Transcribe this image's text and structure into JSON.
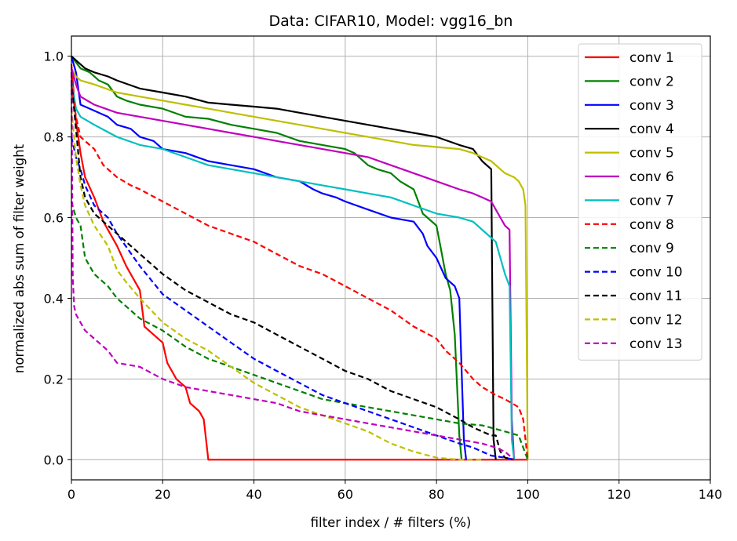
{
  "chart_data": {
    "type": "line",
    "title": "Data: CIFAR10, Model: vgg16_bn",
    "xlabel": "filter index / # filters (%)",
    "ylabel": "normalized abs sum of filter weight",
    "xlim": [
      0,
      140
    ],
    "ylim": [
      -0.05,
      1.05
    ],
    "xticks": [
      0,
      20,
      40,
      60,
      80,
      100,
      120,
      140
    ],
    "yticks": [
      0.0,
      0.2,
      0.4,
      0.6,
      0.8,
      1.0
    ],
    "xtick_labels": [
      "0",
      "20",
      "40",
      "60",
      "80",
      "100",
      "120",
      "140"
    ],
    "ytick_labels": [
      "0.0",
      "0.2",
      "0.4",
      "0.6",
      "0.8",
      "1.0"
    ],
    "grid": true,
    "legend_position": "top-right",
    "series": [
      {
        "name": "conv 1",
        "color": "#ff0000",
        "dash": "solid",
        "x": [
          0,
          1,
          2,
          3,
          5,
          7,
          10,
          12,
          15,
          16,
          18,
          20,
          21,
          23,
          25,
          26,
          28,
          29,
          30,
          35,
          50,
          70,
          90,
          100
        ],
        "y": [
          0.98,
          0.84,
          0.76,
          0.7,
          0.65,
          0.59,
          0.53,
          0.48,
          0.42,
          0.33,
          0.31,
          0.29,
          0.24,
          0.2,
          0.18,
          0.14,
          0.12,
          0.1,
          0.0,
          0.0,
          0.0,
          0.0,
          0.0,
          0.0
        ]
      },
      {
        "name": "conv 2",
        "color": "#008000",
        "dash": "solid",
        "x": [
          0,
          2,
          4,
          6,
          8,
          10,
          12,
          15,
          20,
          25,
          30,
          35,
          40,
          45,
          50,
          55,
          60,
          62,
          65,
          67,
          70,
          72,
          75,
          77,
          78,
          80,
          81,
          82,
          83,
          84,
          85,
          85.5
        ],
        "y": [
          1.0,
          0.97,
          0.96,
          0.94,
          0.93,
          0.9,
          0.89,
          0.88,
          0.87,
          0.85,
          0.845,
          0.83,
          0.82,
          0.81,
          0.79,
          0.78,
          0.77,
          0.76,
          0.73,
          0.72,
          0.71,
          0.69,
          0.67,
          0.61,
          0.6,
          0.58,
          0.52,
          0.46,
          0.42,
          0.31,
          0.06,
          0.0
        ]
      },
      {
        "name": "conv 3",
        "color": "#0000ff",
        "dash": "solid",
        "x": [
          0,
          1,
          2,
          4,
          6,
          8,
          10,
          13,
          15,
          18,
          20,
          25,
          30,
          35,
          40,
          45,
          50,
          53,
          55,
          58,
          60,
          65,
          70,
          75,
          77,
          78,
          80,
          82,
          84,
          85,
          86,
          86.5
        ],
        "y": [
          1.0,
          0.96,
          0.88,
          0.87,
          0.86,
          0.85,
          0.83,
          0.82,
          0.8,
          0.79,
          0.77,
          0.76,
          0.74,
          0.73,
          0.72,
          0.7,
          0.69,
          0.67,
          0.66,
          0.65,
          0.64,
          0.62,
          0.6,
          0.59,
          0.56,
          0.53,
          0.5,
          0.45,
          0.43,
          0.4,
          0.05,
          0.0
        ]
      },
      {
        "name": "conv 4",
        "color": "#000000",
        "dash": "solid",
        "x": [
          0,
          1,
          3,
          5,
          8,
          10,
          15,
          20,
          25,
          30,
          35,
          40,
          45,
          50,
          55,
          60,
          65,
          70,
          75,
          80,
          85,
          88,
          90,
          91,
          92,
          92.5,
          93
        ],
        "y": [
          1.0,
          0.99,
          0.97,
          0.96,
          0.95,
          0.94,
          0.92,
          0.91,
          0.9,
          0.885,
          0.88,
          0.875,
          0.87,
          0.86,
          0.85,
          0.84,
          0.83,
          0.82,
          0.81,
          0.8,
          0.78,
          0.77,
          0.74,
          0.73,
          0.72,
          0.05,
          0.0
        ]
      },
      {
        "name": "conv 5",
        "color": "#bfbf00",
        "dash": "solid",
        "x": [
          0,
          1,
          2,
          5,
          10,
          15,
          20,
          25,
          30,
          35,
          40,
          45,
          50,
          55,
          60,
          65,
          70,
          75,
          80,
          85,
          88,
          90,
          92,
          94,
          95,
          97,
          98,
          99,
          99.5,
          100
        ],
        "y": [
          0.97,
          0.95,
          0.94,
          0.93,
          0.91,
          0.9,
          0.89,
          0.88,
          0.87,
          0.86,
          0.85,
          0.84,
          0.83,
          0.82,
          0.81,
          0.8,
          0.79,
          0.78,
          0.775,
          0.77,
          0.76,
          0.75,
          0.74,
          0.72,
          0.71,
          0.7,
          0.69,
          0.67,
          0.63,
          0.0
        ]
      },
      {
        "name": "conv 6",
        "color": "#bf00bf",
        "dash": "solid",
        "x": [
          0,
          1,
          2,
          5,
          10,
          15,
          20,
          25,
          30,
          35,
          40,
          45,
          50,
          55,
          60,
          65,
          70,
          75,
          80,
          85,
          88,
          90,
          92,
          94,
          95,
          96,
          96.5,
          97
        ],
        "y": [
          0.97,
          0.93,
          0.9,
          0.88,
          0.86,
          0.85,
          0.84,
          0.83,
          0.82,
          0.81,
          0.8,
          0.79,
          0.78,
          0.77,
          0.76,
          0.75,
          0.73,
          0.71,
          0.69,
          0.67,
          0.66,
          0.65,
          0.64,
          0.6,
          0.58,
          0.57,
          0.1,
          0.0
        ]
      },
      {
        "name": "conv 7",
        "color": "#00bfbf",
        "dash": "solid",
        "x": [
          0,
          1,
          2,
          5,
          10,
          15,
          20,
          25,
          30,
          35,
          40,
          45,
          50,
          55,
          60,
          65,
          70,
          75,
          80,
          85,
          88,
          90,
          92,
          93,
          94,
          95,
          96,
          96.5,
          97
        ],
        "y": [
          0.94,
          0.87,
          0.85,
          0.83,
          0.8,
          0.78,
          0.77,
          0.75,
          0.73,
          0.72,
          0.71,
          0.7,
          0.69,
          0.68,
          0.67,
          0.66,
          0.65,
          0.63,
          0.61,
          0.6,
          0.59,
          0.57,
          0.55,
          0.54,
          0.5,
          0.46,
          0.43,
          0.05,
          0.0
        ]
      },
      {
        "name": "conv 8",
        "color": "#ff0000",
        "dash": "dashed",
        "x": [
          0,
          1,
          2,
          3,
          5,
          7,
          10,
          13,
          15,
          20,
          25,
          30,
          35,
          40,
          45,
          50,
          55,
          60,
          65,
          70,
          75,
          80,
          82,
          85,
          88,
          90,
          93,
          95,
          98,
          99,
          100
        ],
        "y": [
          0.93,
          0.85,
          0.8,
          0.79,
          0.77,
          0.73,
          0.7,
          0.68,
          0.67,
          0.64,
          0.61,
          0.58,
          0.56,
          0.54,
          0.51,
          0.48,
          0.46,
          0.43,
          0.4,
          0.37,
          0.33,
          0.3,
          0.27,
          0.24,
          0.2,
          0.18,
          0.16,
          0.15,
          0.13,
          0.1,
          0.0
        ]
      },
      {
        "name": "conv 9",
        "color": "#008000",
        "dash": "dashed",
        "x": [
          0,
          0.5,
          1,
          2,
          3,
          5,
          8,
          10,
          15,
          20,
          25,
          30,
          35,
          40,
          45,
          50,
          55,
          60,
          65,
          70,
          75,
          80,
          85,
          90,
          95,
          98,
          100
        ],
        "y": [
          0.64,
          0.62,
          0.6,
          0.58,
          0.5,
          0.46,
          0.43,
          0.4,
          0.35,
          0.32,
          0.28,
          0.25,
          0.23,
          0.21,
          0.19,
          0.17,
          0.15,
          0.14,
          0.13,
          0.12,
          0.11,
          0.1,
          0.09,
          0.085,
          0.07,
          0.06,
          0.0
        ]
      },
      {
        "name": "conv 10",
        "color": "#0000ff",
        "dash": "dashed",
        "x": [
          0,
          1,
          2,
          3,
          5,
          8,
          10,
          15,
          20,
          25,
          30,
          35,
          40,
          45,
          50,
          55,
          60,
          65,
          70,
          75,
          80,
          85,
          88,
          90,
          92,
          95,
          97
        ],
        "y": [
          0.8,
          0.75,
          0.72,
          0.68,
          0.63,
          0.6,
          0.56,
          0.48,
          0.41,
          0.37,
          0.33,
          0.29,
          0.25,
          0.22,
          0.19,
          0.16,
          0.14,
          0.12,
          0.1,
          0.08,
          0.06,
          0.04,
          0.03,
          0.02,
          0.01,
          0.005,
          0.0
        ]
      },
      {
        "name": "conv 11",
        "color": "#000000",
        "dash": "dashed",
        "x": [
          0,
          1,
          2,
          3,
          5,
          8,
          10,
          15,
          20,
          25,
          30,
          35,
          40,
          45,
          50,
          55,
          60,
          65,
          70,
          75,
          80,
          85,
          88,
          90,
          92,
          93,
          94,
          95,
          97
        ],
        "y": [
          0.94,
          0.82,
          0.7,
          0.65,
          0.61,
          0.58,
          0.56,
          0.51,
          0.46,
          0.42,
          0.39,
          0.36,
          0.34,
          0.31,
          0.28,
          0.25,
          0.22,
          0.2,
          0.17,
          0.15,
          0.13,
          0.1,
          0.08,
          0.07,
          0.06,
          0.06,
          0.02,
          0.005,
          0.0
        ]
      },
      {
        "name": "conv 12",
        "color": "#bfbf00",
        "dash": "dashed",
        "x": [
          0,
          1,
          2,
          3,
          5,
          8,
          10,
          12,
          15,
          20,
          25,
          30,
          35,
          40,
          45,
          50,
          55,
          60,
          65,
          70,
          75,
          80,
          85,
          90
        ],
        "y": [
          0.87,
          0.75,
          0.68,
          0.63,
          0.58,
          0.53,
          0.47,
          0.44,
          0.4,
          0.34,
          0.3,
          0.27,
          0.23,
          0.19,
          0.16,
          0.13,
          0.11,
          0.09,
          0.07,
          0.04,
          0.02,
          0.005,
          0.0,
          0.0
        ]
      },
      {
        "name": "conv 13",
        "color": "#bf00bf",
        "dash": "dashed",
        "x": [
          0,
          0.3,
          0.6,
          1,
          2,
          3,
          5,
          8,
          10,
          15,
          20,
          25,
          30,
          35,
          40,
          45,
          50,
          55,
          60,
          65,
          70,
          75,
          80,
          85,
          90,
          93,
          95,
          97
        ],
        "y": [
          0.96,
          0.45,
          0.38,
          0.36,
          0.34,
          0.32,
          0.3,
          0.27,
          0.24,
          0.23,
          0.2,
          0.18,
          0.17,
          0.16,
          0.15,
          0.14,
          0.12,
          0.11,
          0.1,
          0.09,
          0.08,
          0.07,
          0.06,
          0.05,
          0.04,
          0.03,
          0.02,
          0.0
        ]
      }
    ]
  }
}
